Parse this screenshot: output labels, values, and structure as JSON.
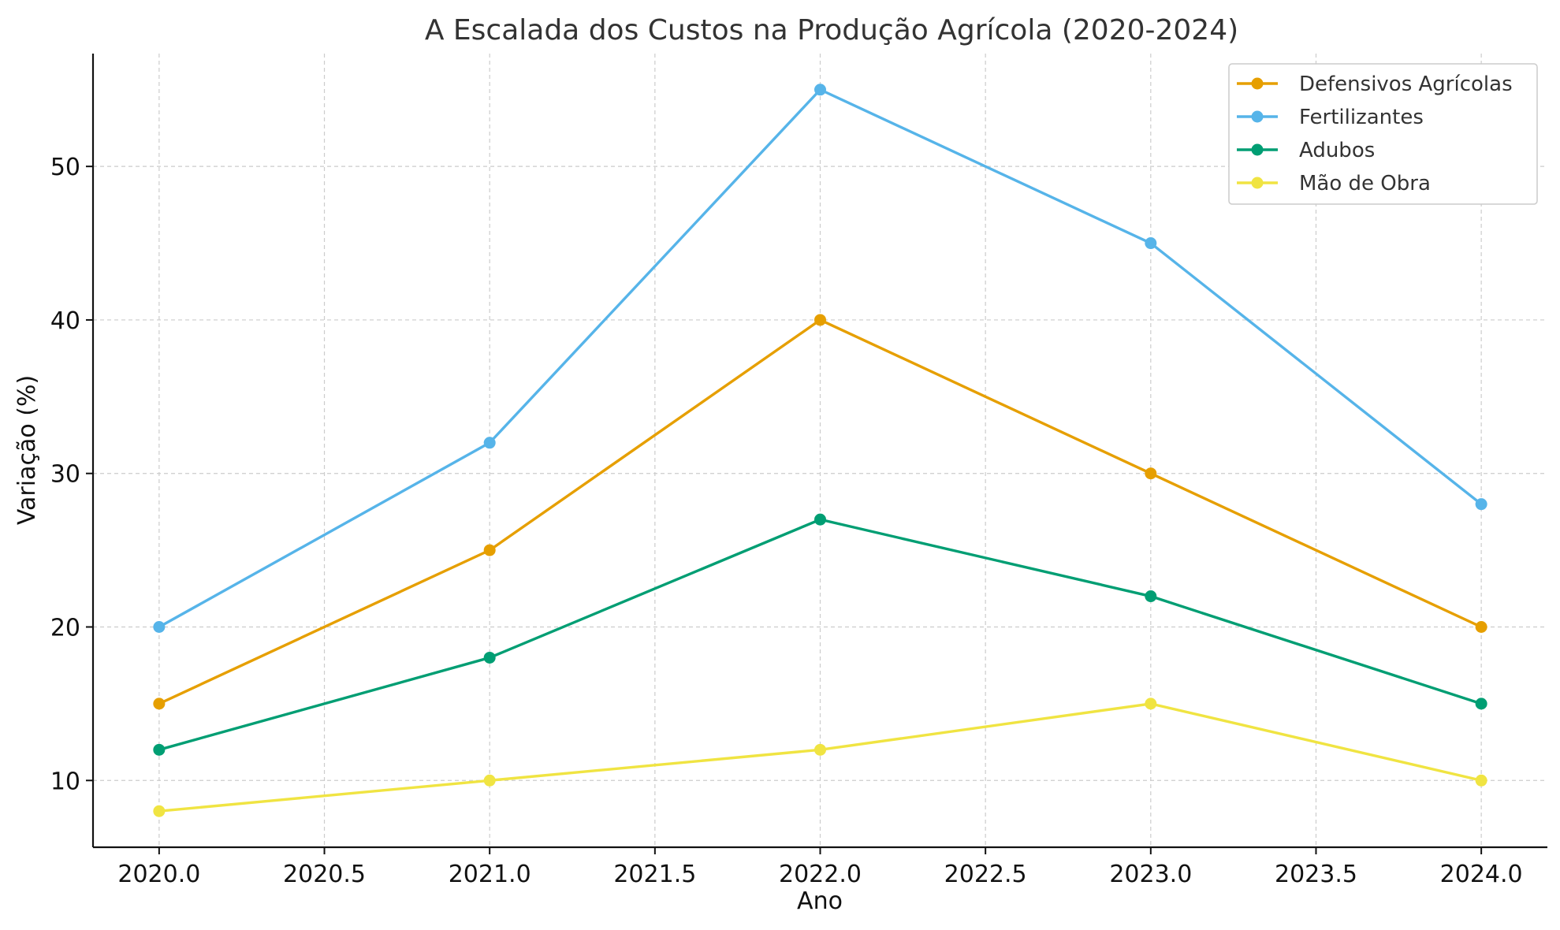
{
  "chart_data": {
    "type": "line",
    "title": "A Escalada dos Custos na Produção Agrícola (2020-2024)",
    "xlabel": "Ano",
    "ylabel": "Variação (%)",
    "x": [
      2020,
      2021,
      2022,
      2023,
      2024
    ],
    "xlim": [
      2019.8,
      2024.2
    ],
    "ylim": [
      5.65,
      57.35
    ],
    "xticks": [
      2020.0,
      2020.5,
      2021.0,
      2021.5,
      2022.0,
      2022.5,
      2023.0,
      2023.5,
      2024.0
    ],
    "xtick_labels": [
      "2020.0",
      "2020.5",
      "2021.0",
      "2021.5",
      "2022.0",
      "2022.5",
      "2023.0",
      "2023.5",
      "2024.0"
    ],
    "yticks": [
      10,
      20,
      30,
      40,
      50
    ],
    "ytick_labels": [
      "10",
      "20",
      "30",
      "40",
      "50"
    ],
    "grid": true,
    "legend_position": "top-right",
    "series": [
      {
        "name": "Defensivos Agrícolas",
        "color": "#E69F00",
        "values": [
          15,
          25,
          40,
          30,
          20
        ]
      },
      {
        "name": "Fertilizantes",
        "color": "#56B4E9",
        "values": [
          20,
          32,
          55,
          45,
          28
        ]
      },
      {
        "name": "Adubos",
        "color": "#009E73",
        "values": [
          12,
          18,
          27,
          22,
          15
        ]
      },
      {
        "name": "Mão de Obra",
        "color": "#F0E442",
        "values": [
          8,
          10,
          12,
          15,
          10
        ]
      }
    ]
  }
}
